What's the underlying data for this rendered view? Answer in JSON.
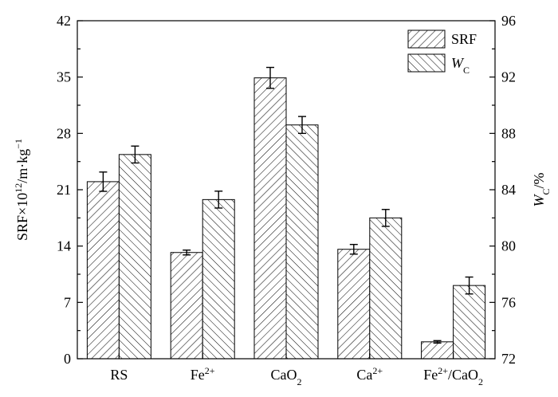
{
  "chart_data": {
    "type": "bar",
    "categories": [
      {
        "base": "RS",
        "sup": "",
        "sub": ""
      },
      {
        "base": "Fe",
        "sup": "2+",
        "sub": ""
      },
      {
        "base": "CaO",
        "sup": "",
        "sub": "2"
      },
      {
        "base": "Ca",
        "sup": "2+",
        "sub": ""
      },
      {
        "base": "Fe",
        "sup": "2+",
        "sub": "",
        "tail": "/CaO",
        "tail_sub": "2"
      }
    ],
    "series": [
      {
        "name": "SRF",
        "axis": "left",
        "values": [
          22.0,
          13.2,
          34.9,
          13.6,
          2.1
        ],
        "errors": [
          1.2,
          0.3,
          1.3,
          0.6,
          0.15
        ],
        "hatch": "forward"
      },
      {
        "name": "WC",
        "name_base": "W",
        "name_sub": "C",
        "axis": "right",
        "values": [
          86.5,
          83.3,
          88.6,
          82.0,
          77.2
        ],
        "errors": [
          0.6,
          0.6,
          0.6,
          0.6,
          0.6
        ],
        "hatch": "backward"
      }
    ],
    "y_left": {
      "label_base": "SRF×10",
      "label_sup": "12",
      "label_mid": "/m·kg",
      "label_sup2": "−1",
      "min": 0,
      "max": 42,
      "ticks": [
        0,
        7,
        14,
        21,
        28,
        35,
        42
      ]
    },
    "y_right": {
      "label_base": "W",
      "label_sub": "C",
      "label_tail": "/%",
      "min": 72,
      "max": 96,
      "ticks": [
        72,
        76,
        80,
        84,
        88,
        92,
        96
      ]
    },
    "legend_position": "top-right",
    "grid": false
  }
}
